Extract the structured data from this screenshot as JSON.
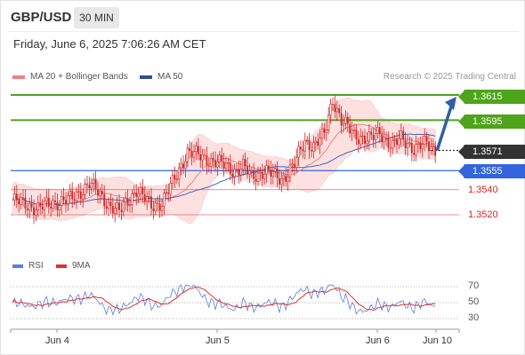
{
  "header": {
    "pair": "GBP/USD",
    "timeframe": "30 MIN"
  },
  "timestamp": "Friday, June 6, 2025 7:06:26 AM CET",
  "legend": {
    "ma20_label": "MA 20 + Bollinger Bands",
    "ma50_label": "MA 50",
    "credit": "Research © 2025 Trading Central"
  },
  "levels": {
    "r2": "1.3615",
    "r1": "1.3595",
    "current": "1.3571",
    "pivot": "1.3555",
    "s1": "1.3540",
    "s2": "1.3520"
  },
  "rsi_legend": {
    "rsi_label": "RSI",
    "ma_label": "9MA"
  },
  "rsi_ticks": [
    "70",
    "50",
    "30"
  ],
  "x_axis": [
    "Jun 4",
    "Jun 5",
    "Jun 6",
    "Jun 10"
  ],
  "colors": {
    "resistance": "#4ea41a",
    "pivot": "#3366dd",
    "support": "#e03a3a",
    "current": "#333333",
    "candle": "#cc2222",
    "bollinger_fill": "#fde0e0",
    "ma20": "#f08080",
    "ma50": "#4466bb",
    "rsi": "#5b7fd9",
    "rsi_ma": "#e03030",
    "arrow": "#2f5fa8"
  },
  "chart_data": {
    "type": "candlestick",
    "price_levels": [
      1.3615,
      1.3595,
      1.3571,
      1.3555,
      1.354,
      1.352
    ],
    "rsi_levels": [
      70,
      50,
      30
    ]
  }
}
